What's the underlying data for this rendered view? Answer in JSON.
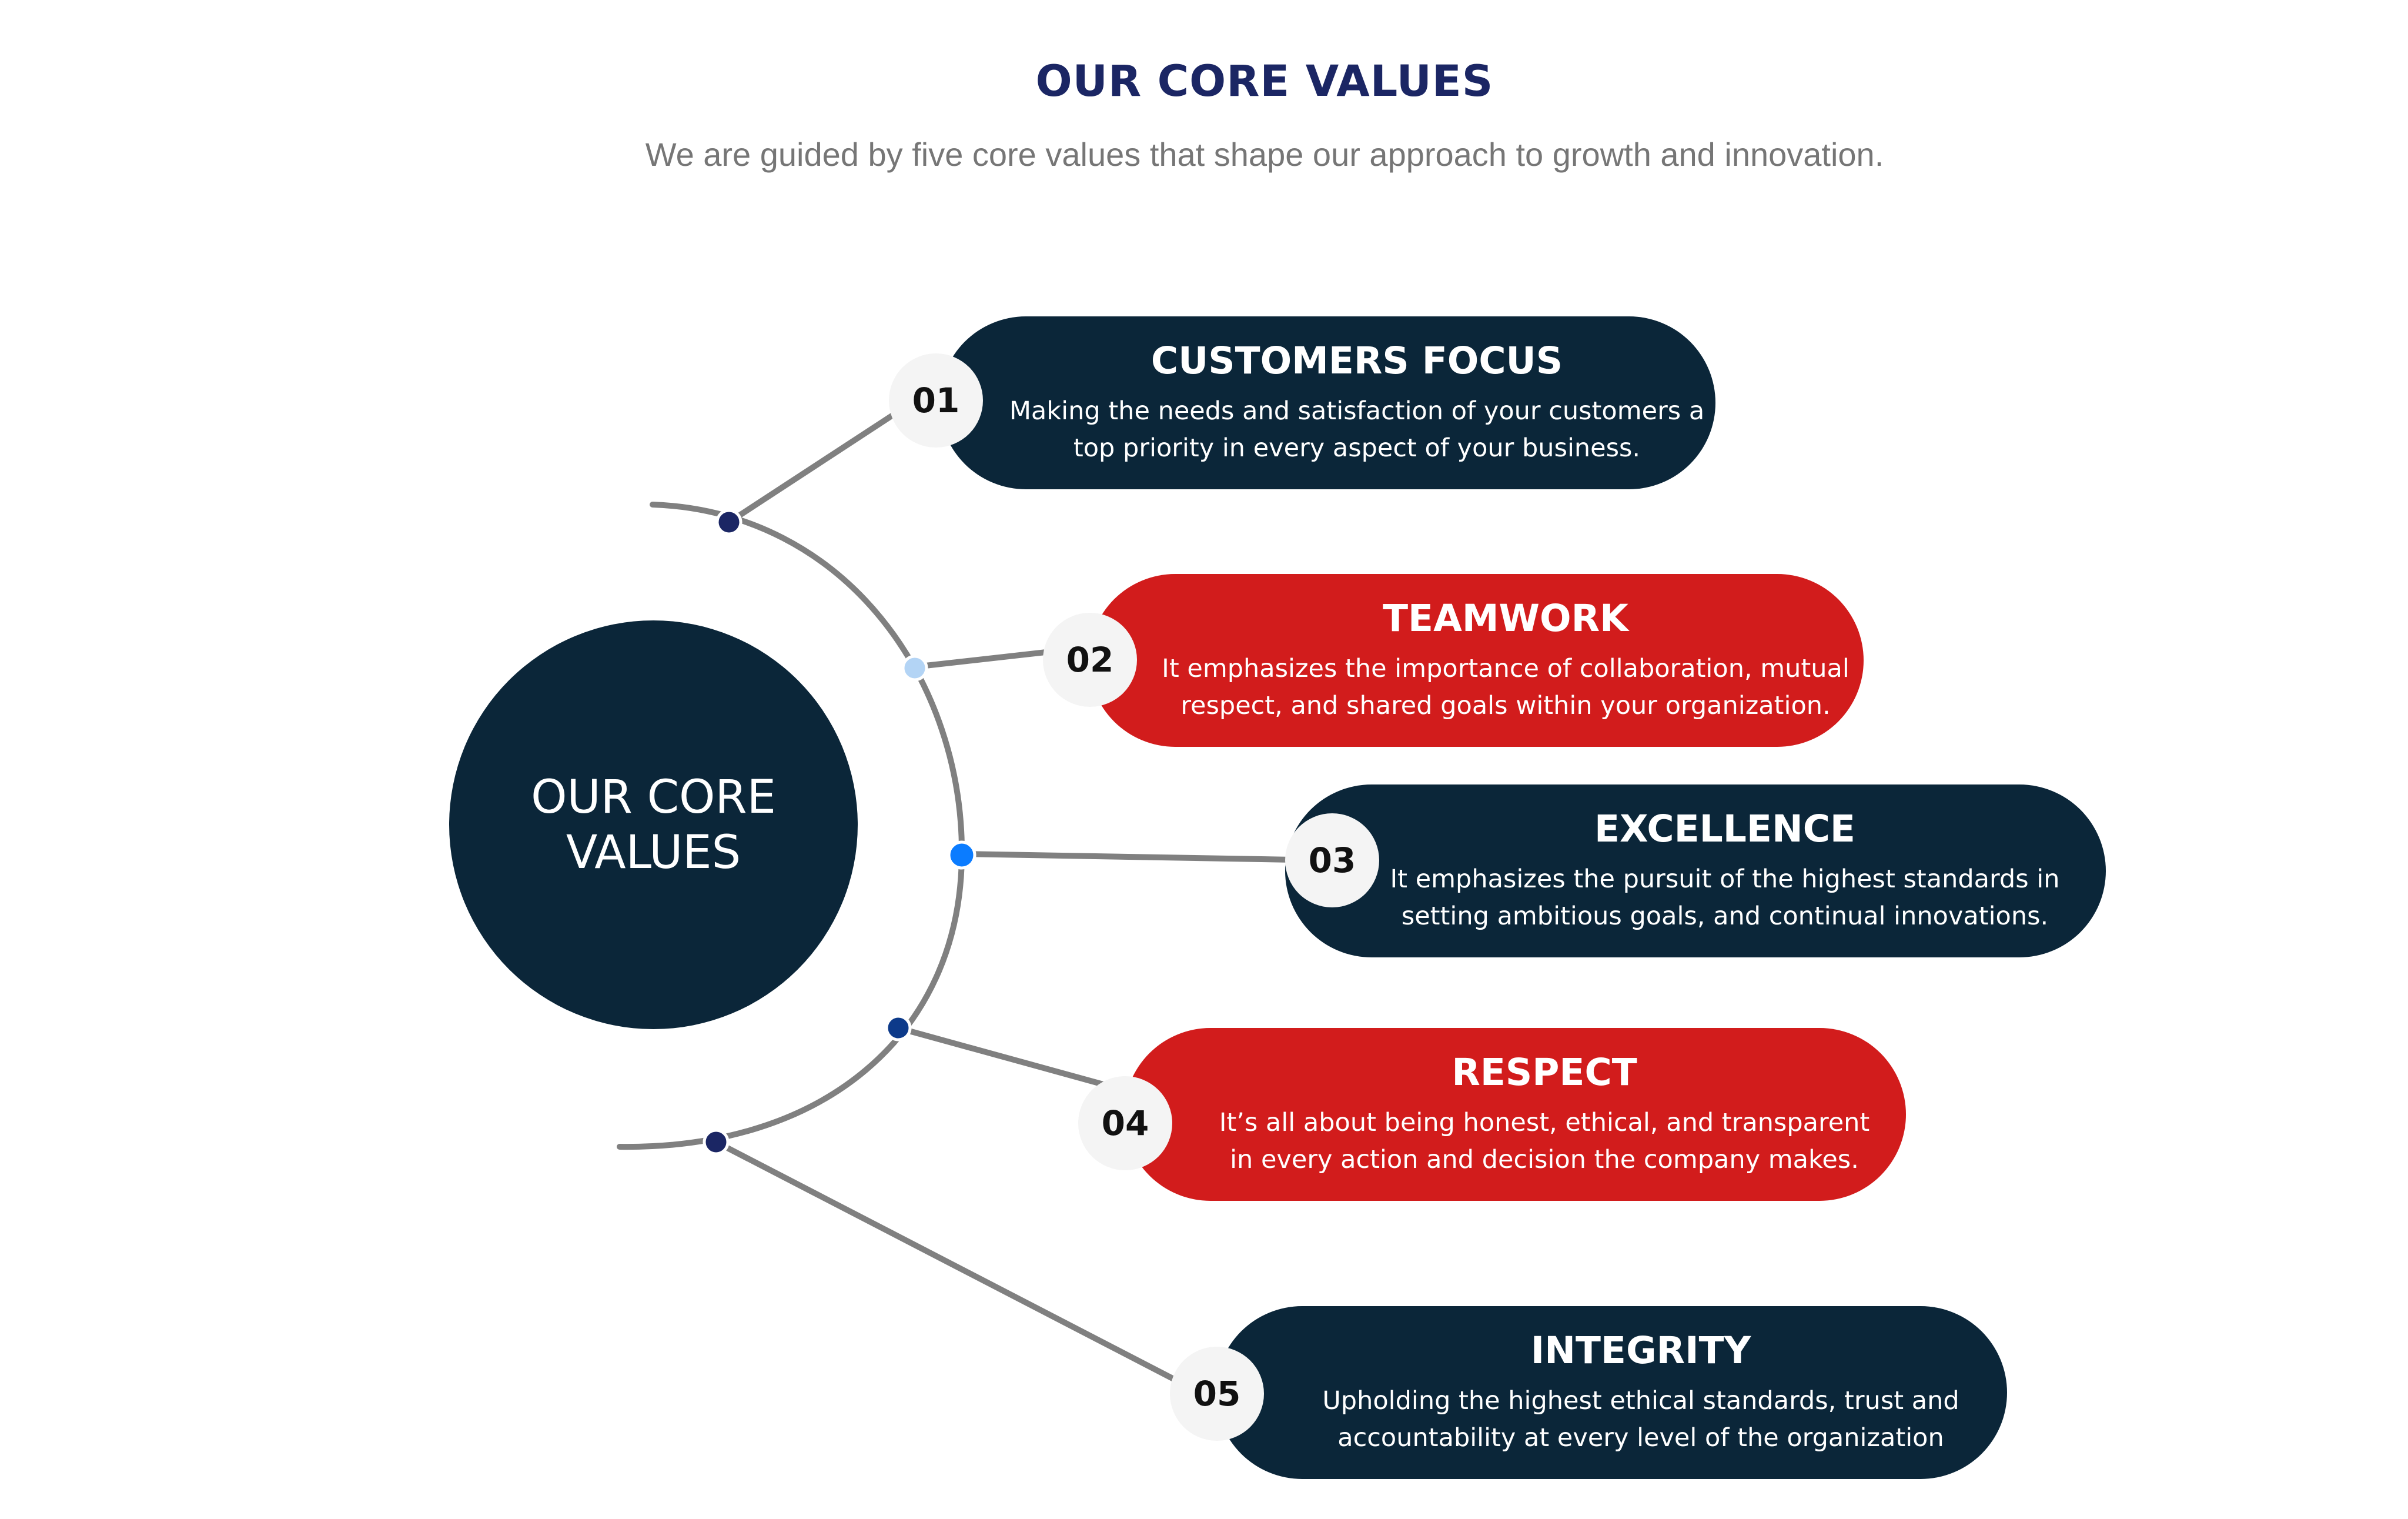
{
  "header": {
    "title": "OUR CORE VALUES",
    "subtitle": "We are guided by five core values that shape our approach to growth and innovation."
  },
  "center": {
    "label": "OUR CORE VALUES"
  },
  "colors": {
    "navy": "#0b2639",
    "red": "#d21c1c",
    "title_blue": "#1b2664",
    "connector_gray": "#808080",
    "node_dark": "#1b2664",
    "node_light": "#b3d4f5",
    "node_bright": "#0b7cff",
    "node_mid": "#0d3a8a"
  },
  "values": [
    {
      "number": "01",
      "title": "CUSTOMERS FOCUS",
      "desc_line1": "Making the needs and satisfaction of your customers a",
      "desc_line2": "top priority in every aspect of your business.",
      "color": "navy"
    },
    {
      "number": "02",
      "title": "TEAMWORK",
      "desc_line1": "It emphasizes the importance of collaboration, mutual",
      "desc_line2": "respect, and shared goals within your organization.",
      "color": "red"
    },
    {
      "number": "03",
      "title": "EXCELLENCE",
      "desc_line1": "It emphasizes the pursuit of the highest standards in",
      "desc_line2": "setting ambitious goals, and continual  innovations.",
      "color": "navy"
    },
    {
      "number": "04",
      "title": "RESPECT",
      "desc_line1": "It’s all about being honest, ethical, and transparent",
      "desc_line2": "in every action and decision the company makes.",
      "color": "red"
    },
    {
      "number": "05",
      "title": "INTEGRITY",
      "desc_line1": "Upholding the highest ethical standards, trust and",
      "desc_line2": "accountability at every level of the organization",
      "color": "navy"
    }
  ]
}
